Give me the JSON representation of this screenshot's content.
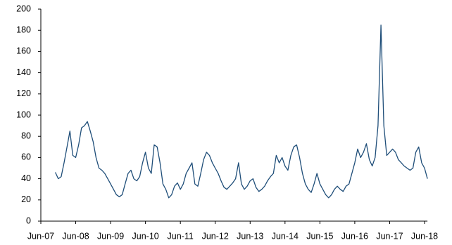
{
  "chart_data": {
    "type": "line",
    "categories": [
      "Jun-07",
      null,
      null,
      null,
      null,
      null,
      null,
      null,
      null,
      null,
      null,
      null,
      "Jun-08",
      null,
      null,
      null,
      null,
      null,
      null,
      null,
      null,
      null,
      null,
      null,
      "Jun-09",
      null,
      null,
      null,
      null,
      null,
      null,
      null,
      null,
      null,
      null,
      null,
      "Jun-10",
      null,
      null,
      null,
      null,
      null,
      null,
      null,
      null,
      null,
      null,
      null,
      "Jun-11",
      null,
      null,
      null,
      null,
      null,
      null,
      null,
      null,
      null,
      null,
      null,
      "Jun-12",
      null,
      null,
      null,
      null,
      null,
      null,
      null,
      null,
      null,
      null,
      null,
      "Jun-13",
      null,
      null,
      null,
      null,
      null,
      null,
      null,
      null,
      null,
      null,
      null,
      "Jun-14",
      null,
      null,
      null,
      null,
      null,
      null,
      null,
      null,
      null,
      null,
      null,
      "Jun-15",
      null,
      null,
      null,
      null,
      null,
      null,
      null,
      null,
      null,
      null,
      null,
      "Jun-16",
      null,
      null,
      null,
      null,
      null,
      null,
      null,
      null,
      null,
      null,
      null,
      "Jun-17",
      null,
      null,
      null,
      null,
      null,
      null,
      null,
      null,
      null,
      null,
      null,
      "Jun-18",
      null
    ],
    "values": [
      null,
      null,
      null,
      null,
      null,
      46,
      40,
      42,
      55,
      70,
      85,
      62,
      60,
      72,
      88,
      90,
      94,
      85,
      75,
      60,
      50,
      48,
      45,
      40,
      35,
      30,
      25,
      23,
      25,
      35,
      45,
      48,
      40,
      38,
      42,
      55,
      65,
      50,
      45,
      72,
      70,
      55,
      35,
      30,
      22,
      25,
      33,
      36,
      30,
      35,
      45,
      50,
      55,
      35,
      33,
      45,
      58,
      65,
      62,
      55,
      50,
      45,
      38,
      32,
      30,
      33,
      36,
      40,
      55,
      35,
      30,
      33,
      38,
      40,
      32,
      28,
      30,
      33,
      38,
      42,
      45,
      62,
      55,
      60,
      52,
      48,
      62,
      70,
      72,
      60,
      45,
      35,
      30,
      27,
      35,
      45,
      35,
      30,
      25,
      22,
      25,
      30,
      33,
      30,
      28,
      33,
      35,
      45,
      55,
      68,
      60,
      65,
      73,
      58,
      52,
      60,
      90,
      185,
      90,
      62,
      65,
      68,
      65,
      58,
      55,
      52,
      50,
      48,
      50,
      65,
      70,
      55,
      50,
      40
    ],
    "color": "#1f4e79",
    "ylim": [
      0,
      200
    ],
    "yticks": [
      0,
      20,
      40,
      60,
      80,
      100,
      120,
      140,
      160,
      180,
      200
    ]
  }
}
